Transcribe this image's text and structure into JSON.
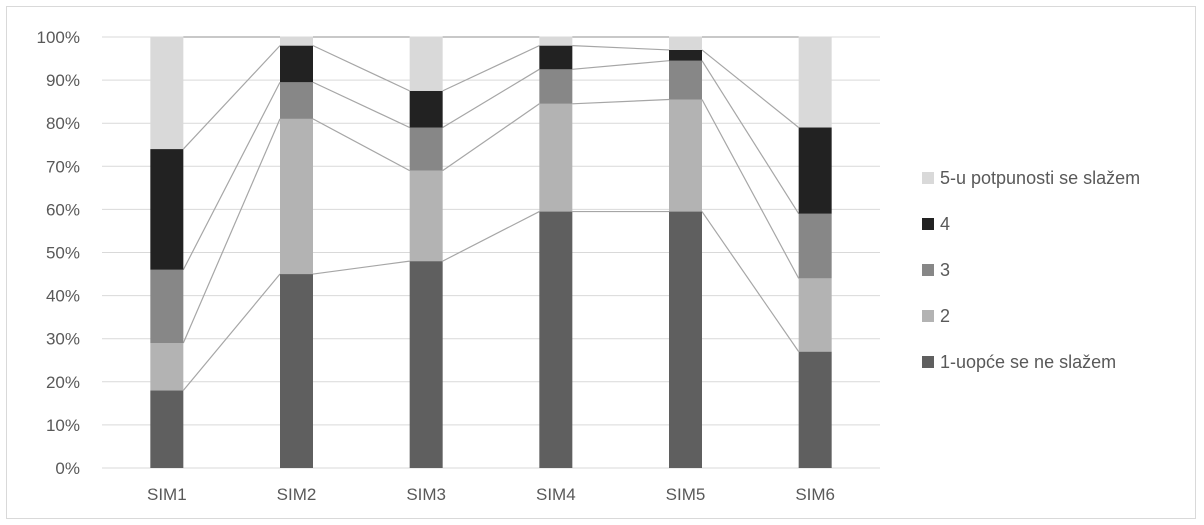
{
  "chart_data": {
    "type": "bar",
    "stacked": true,
    "normalized": true,
    "series_lines": true,
    "categories": [
      "SIM1",
      "SIM2",
      "SIM3",
      "SIM4",
      "SIM5",
      "SIM6"
    ],
    "series": [
      {
        "name": "1-uopće se ne slažem",
        "color": "#5f5f5f",
        "values": [
          18,
          45,
          48,
          59.5,
          59.5,
          27
        ]
      },
      {
        "name": "2",
        "color": "#b3b3b3",
        "values": [
          11,
          36,
          21,
          25,
          26,
          17
        ]
      },
      {
        "name": "3",
        "color": "#878787",
        "values": [
          17,
          8.5,
          10,
          8,
          9,
          15
        ]
      },
      {
        "name": "4",
        "color": "#222222",
        "values": [
          28,
          8.5,
          8.5,
          5.5,
          2.5,
          20
        ]
      },
      {
        "name": "5-u potpunosti se slažem",
        "color": "#d9d9d9",
        "values": [
          26,
          2,
          12.5,
          2,
          3,
          21
        ]
      }
    ],
    "yticks": [
      "0%",
      "10%",
      "20%",
      "30%",
      "40%",
      "50%",
      "60%",
      "70%",
      "80%",
      "90%",
      "100%"
    ],
    "ylim": [
      0,
      100
    ],
    "grid": true,
    "legend_position": "right",
    "colors": {
      "grid": "#d9d9d9",
      "connector": "#a6a6a6",
      "text": "#595959"
    }
  }
}
